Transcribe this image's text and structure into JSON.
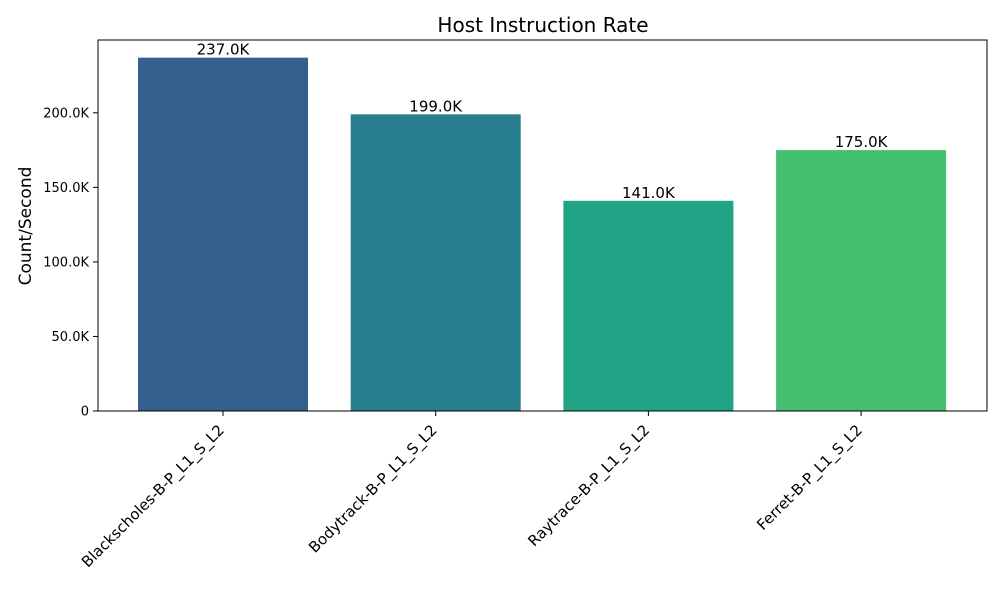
{
  "chart_data": {
    "type": "bar",
    "title": "Host Instruction Rate",
    "xlabel": "",
    "ylabel": "Count/Second",
    "categories": [
      "Blackscholes-B-P_L1_S_L2",
      "Bodytrack-B-P_L1_S_L2",
      "Raytrace-B-P_L1_S_L2",
      "Ferret-B-P_L1_S_L2"
    ],
    "values": [
      237000,
      199000,
      141000,
      175000
    ],
    "value_labels": [
      "237.0K",
      "199.0K",
      "141.0K",
      "175.0K"
    ],
    "colors": [
      "#355f8d",
      "#277f8e",
      "#21a386",
      "#44bf70"
    ],
    "ylim": [
      0,
      248850
    ],
    "yticks": [
      0,
      50000,
      100000,
      150000,
      200000
    ],
    "ytick_labels": [
      "0",
      "50.0K",
      "100.0K",
      "150.0K",
      "200.0K"
    ],
    "grid": false,
    "legend": "none"
  }
}
